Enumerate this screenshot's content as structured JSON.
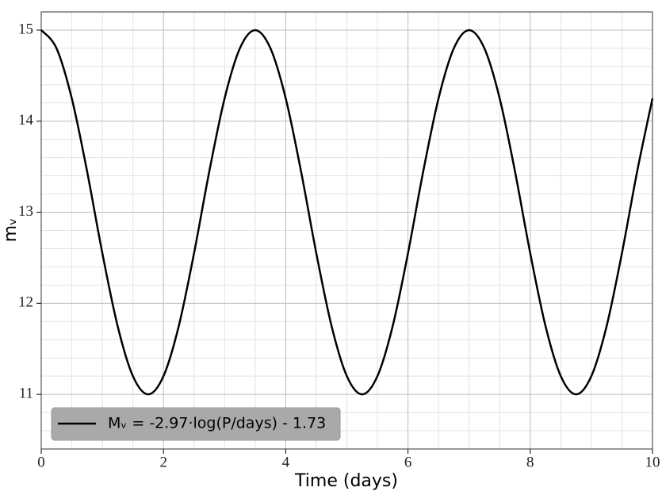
{
  "chart_data": {
    "type": "line",
    "xlabel": "Time (days)",
    "ylabel": "mᵥ",
    "x": [
      0,
      0.25,
      0.5,
      0.75,
      1,
      1.25,
      1.5,
      1.75,
      2,
      2.25,
      2.5,
      2.75,
      3,
      3.25,
      3.5,
      3.75,
      4,
      4.25,
      4.5,
      4.75,
      5,
      5.25,
      5.5,
      5.75,
      6,
      6.25,
      6.5,
      6.75,
      7,
      7.25,
      7.5,
      7.75,
      8,
      8.25,
      8.5,
      8.75,
      9,
      9.25,
      9.5,
      9.75,
      10
    ],
    "series": [
      {
        "name": "Mᵥ = -2.97·log(P/days) - 1.73",
        "color": "#000000",
        "values": [
          15,
          14.8,
          14.25,
          13.45,
          12.55,
          11.75,
          11.2,
          11,
          11.2,
          11.75,
          12.55,
          13.45,
          14.25,
          14.8,
          15,
          14.8,
          14.25,
          13.45,
          12.55,
          11.75,
          11.2,
          11,
          11.2,
          11.75,
          12.55,
          13.45,
          14.25,
          14.8,
          15,
          14.8,
          14.25,
          13.45,
          12.55,
          11.75,
          11.2,
          11,
          11.2,
          11.75,
          12.55,
          13.45,
          14.25
        ]
      }
    ],
    "xlim": [
      0,
      10
    ],
    "ylim": [
      10.4,
      15.2
    ],
    "xticks": [
      0,
      2,
      4,
      6,
      8,
      10
    ],
    "yticks": [
      11,
      12,
      13,
      14,
      15
    ],
    "xticks_minor": [
      0.5,
      1,
      1.5,
      2.5,
      3,
      3.5,
      4.5,
      5,
      5.5,
      6.5,
      7,
      7.5,
      8.5,
      9,
      9.5
    ],
    "yticks_minor": [
      10.6,
      10.8,
      11.2,
      11.4,
      11.6,
      11.8,
      12.2,
      12.4,
      12.6,
      12.8,
      13.2,
      13.4,
      13.6,
      13.8,
      14.2,
      14.4,
      14.6,
      14.8,
      15.2
    ],
    "grid": true,
    "legend": "lower left"
  }
}
